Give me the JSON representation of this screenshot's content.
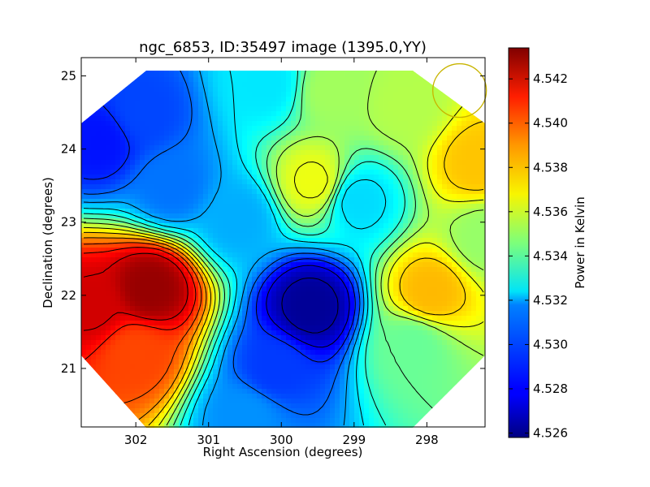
{
  "chart_data": {
    "type": "heatmap",
    "title": "ngc_6853, ID:35497 image (1395.0,YY)",
    "xlabel": "Right Ascension (degrees)",
    "ylabel": "Declination (degrees)",
    "colorbar_label": "Power in Kelvin",
    "xlim": [
      302.75,
      297.2
    ],
    "ylim": [
      20.2,
      25.25
    ],
    "x_ticks": [
      "302",
      "301",
      "300",
      "299",
      "298"
    ],
    "y_ticks": [
      "21",
      "22",
      "23",
      "24",
      "25"
    ],
    "colorbar_range": [
      4.5258,
      4.5434
    ],
    "colorbar_ticks": [
      "4.526",
      "4.528",
      "4.530",
      "4.532",
      "4.534",
      "4.536",
      "4.538",
      "4.540",
      "4.542"
    ],
    "colormap": "jet",
    "contour_lines": true,
    "field_of_view": "octagon",
    "beam_marker": {
      "ra": 297.55,
      "dec": 24.8,
      "color": "#c8b400"
    },
    "features": [
      {
        "ra": 301.8,
        "dec": 22.1,
        "value": 4.543
      },
      {
        "ra": 302.6,
        "dec": 21.85,
        "value": 4.542
      },
      {
        "ra": 302.0,
        "dec": 21.2,
        "value": 4.54
      },
      {
        "ra": 299.6,
        "dec": 21.85,
        "value": 4.5262
      },
      {
        "ra": 300.1,
        "dec": 21.0,
        "value": 4.529
      },
      {
        "ra": 300.5,
        "dec": 20.35,
        "value": 4.5305
      },
      {
        "ra": 302.5,
        "dec": 24.1,
        "value": 4.5283
      },
      {
        "ra": 301.9,
        "dec": 24.5,
        "value": 4.5292
      },
      {
        "ra": 301.5,
        "dec": 23.5,
        "value": 4.53
      },
      {
        "ra": 300.6,
        "dec": 23.05,
        "value": 4.531
      },
      {
        "ra": 300.2,
        "dec": 24.9,
        "value": 4.532
      },
      {
        "ra": 298.95,
        "dec": 23.3,
        "value": 4.5318
      },
      {
        "ra": 299.55,
        "dec": 23.55,
        "value": 4.5365
      },
      {
        "ra": 297.95,
        "dec": 22.05,
        "value": 4.538
      },
      {
        "ra": 297.3,
        "dec": 23.8,
        "value": 4.5378
      },
      {
        "ra": 297.2,
        "dec": 22.8,
        "value": 4.535
      },
      {
        "ra": 299.3,
        "dec": 24.8,
        "value": 4.5352
      },
      {
        "ra": 298.3,
        "dec": 24.6,
        "value": 4.5355
      },
      {
        "ra": 298.2,
        "dec": 21.3,
        "value": 4.5342
      }
    ]
  }
}
